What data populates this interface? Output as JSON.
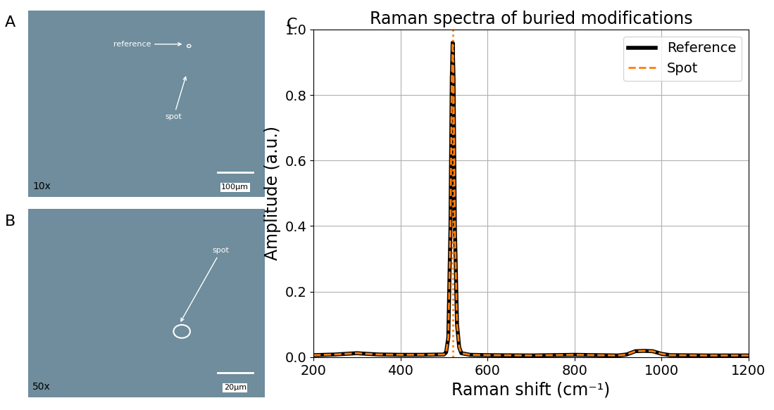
{
  "panels": [
    {
      "letter": "A",
      "magnification": "10x",
      "scale_bar": "100μm",
      "annotations": [
        "reference",
        "spot"
      ]
    },
    {
      "letter": "B",
      "magnification": "50x",
      "scale_bar": "20μm",
      "annotations": [
        "spot"
      ]
    }
  ],
  "chart_data": {
    "type": "line",
    "letter": "C",
    "title": "Raman spectra of buried modifications",
    "x_label": "Raman shift (cm⁻¹)",
    "y_label": "Amplitude (a.u.)",
    "x": [
      200,
      250,
      300,
      310,
      350,
      400,
      450,
      500,
      505,
      510,
      515,
      518,
      520,
      522,
      525,
      530,
      535,
      540,
      560,
      600,
      700,
      800,
      900,
      920,
      940,
      960,
      980,
      1000,
      1020,
      1100,
      1200
    ],
    "series": [
      {
        "name": "Reference",
        "color": "#000000",
        "line_style": "solid",
        "values": [
          0.006,
          0.008,
          0.012,
          0.011,
          0.008,
          0.007,
          0.007,
          0.008,
          0.015,
          0.06,
          0.4,
          0.85,
          0.96,
          0.85,
          0.4,
          0.1,
          0.03,
          0.012,
          0.007,
          0.006,
          0.005,
          0.007,
          0.005,
          0.008,
          0.018,
          0.019,
          0.018,
          0.01,
          0.006,
          0.005,
          0.005
        ]
      },
      {
        "name": "Spot",
        "color": "#ff7f0e",
        "line_style": "dashed",
        "values": [
          0.006,
          0.008,
          0.012,
          0.011,
          0.008,
          0.007,
          0.007,
          0.008,
          0.015,
          0.06,
          0.4,
          0.85,
          0.96,
          0.85,
          0.4,
          0.1,
          0.03,
          0.012,
          0.007,
          0.006,
          0.005,
          0.007,
          0.005,
          0.008,
          0.018,
          0.019,
          0.018,
          0.01,
          0.006,
          0.005,
          0.005
        ]
      }
    ],
    "vlines": [
      {
        "x": 520,
        "color": "#ff7f0e",
        "line_style": "dotted"
      }
    ],
    "xlim": [
      200,
      1200
    ],
    "xticks": [
      200,
      400,
      600,
      800,
      1000,
      1200
    ],
    "ylim": [
      0,
      1.0
    ],
    "yticks": [
      {
        "value": 0,
        "label": "0.0"
      },
      {
        "value": 0.2,
        "label": "0.2"
      },
      {
        "value": 0.4,
        "label": "0.4"
      },
      {
        "value": 0.6,
        "label": "0.6"
      },
      {
        "value": 0.8,
        "label": "0.8"
      },
      {
        "value": 1.0,
        "label": "1.0"
      }
    ],
    "grid": true,
    "legend": "upper right"
  }
}
